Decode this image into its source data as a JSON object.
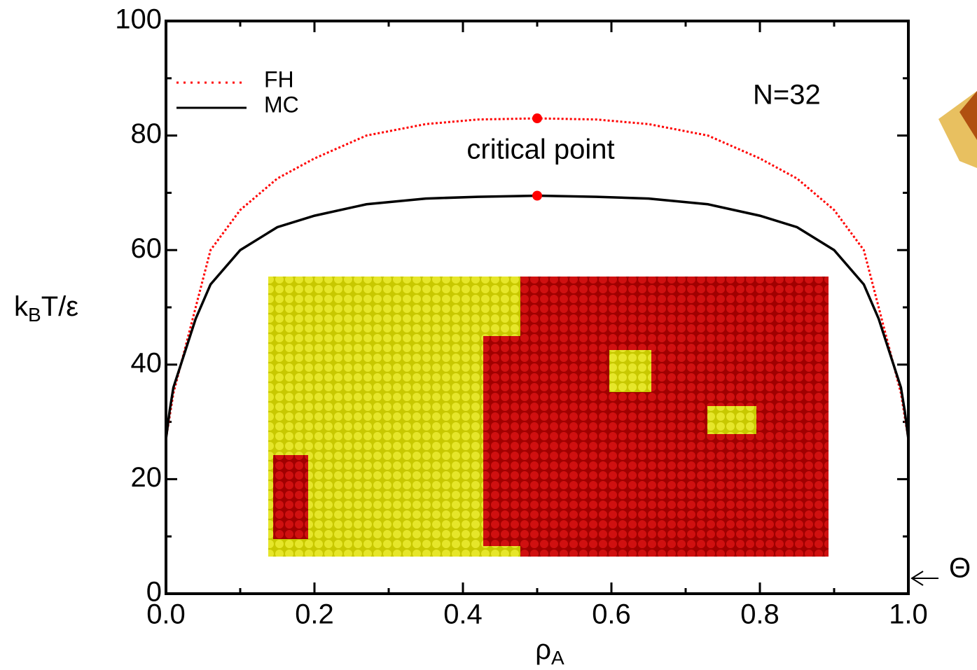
{
  "chart_data": {
    "type": "line",
    "x_label": {
      "base": "ρ",
      "sub": "A"
    },
    "y_label": {
      "base": "k",
      "sub": "B",
      "rest": "T/ε"
    },
    "xlim": [
      0,
      1
    ],
    "ylim": [
      0,
      100
    ],
    "xticks": [
      {
        "value": 0,
        "label": "0.0"
      },
      0.2,
      0.4,
      0.6,
      0.8,
      {
        "value": 1,
        "label": "1.0"
      }
    ],
    "yticks": [
      0,
      20,
      40,
      60,
      80,
      100
    ],
    "legend": "upper left",
    "series": [
      {
        "name": "FH",
        "color": "#ff0000",
        "style": "dotted",
        "x": [
          0,
          0.005,
          0.01,
          0.02,
          0.04,
          0.06,
          0.1,
          0.15,
          0.2,
          0.27,
          0.35,
          0.42,
          0.5,
          0.58,
          0.65,
          0.73,
          0.8,
          0.85,
          0.9,
          0.94,
          0.96,
          0.98,
          0.99,
          0.995,
          1
        ],
        "values": [
          27,
          31,
          35,
          40,
          50,
          60,
          67,
          72.5,
          76,
          80,
          82,
          82.8,
          83,
          82.8,
          82,
          80,
          76,
          72.5,
          67,
          60,
          50,
          40,
          35,
          31,
          27
        ]
      },
      {
        "name": "MC",
        "color": "#000000",
        "style": "solid",
        "x": [
          0,
          0.005,
          0.01,
          0.02,
          0.04,
          0.06,
          0.1,
          0.15,
          0.2,
          0.27,
          0.35,
          0.42,
          0.5,
          0.58,
          0.65,
          0.73,
          0.8,
          0.85,
          0.9,
          0.94,
          0.96,
          0.98,
          0.99,
          0.995,
          1
        ],
        "values": [
          27,
          32,
          36,
          40,
          48,
          54,
          60,
          64,
          66,
          68,
          69,
          69.3,
          69.5,
          69.3,
          69,
          68,
          66,
          64,
          60,
          54,
          48,
          40,
          36,
          32,
          27
        ]
      }
    ],
    "critical_points": {
      "color": "#ff0000",
      "x": [
        0.5,
        0.5
      ],
      "values": [
        83,
        69.5
      ]
    },
    "annotations": [
      "N=32",
      "critical point",
      "Θ"
    ]
  }
}
